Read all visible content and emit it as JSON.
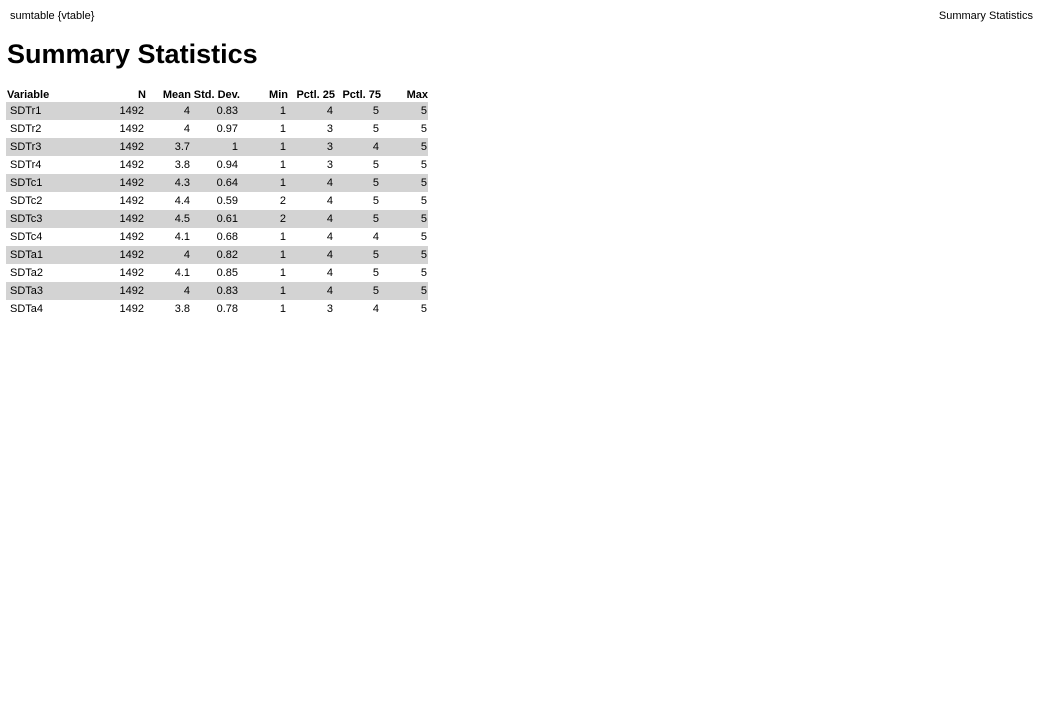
{
  "header": {
    "left": "sumtable {vtable}",
    "right": "Summary Statistics"
  },
  "title": "Summary Statistics",
  "table": {
    "columns": [
      "Variable",
      "N",
      "Mean",
      "Std. Dev.",
      "Min",
      "Pctl. 25",
      "Pctl. 75",
      "Max"
    ],
    "rows": [
      [
        "SDTr1",
        "1492",
        "4",
        "0.83",
        "1",
        "4",
        "5",
        "5"
      ],
      [
        "SDTr2",
        "1492",
        "4",
        "0.97",
        "1",
        "3",
        "5",
        "5"
      ],
      [
        "SDTr3",
        "1492",
        "3.7",
        "1",
        "1",
        "3",
        "4",
        "5"
      ],
      [
        "SDTr4",
        "1492",
        "3.8",
        "0.94",
        "1",
        "3",
        "5",
        "5"
      ],
      [
        "SDTc1",
        "1492",
        "4.3",
        "0.64",
        "1",
        "4",
        "5",
        "5"
      ],
      [
        "SDTc2",
        "1492",
        "4.4",
        "0.59",
        "2",
        "4",
        "5",
        "5"
      ],
      [
        "SDTc3",
        "1492",
        "4.5",
        "0.61",
        "2",
        "4",
        "5",
        "5"
      ],
      [
        "SDTc4",
        "1492",
        "4.1",
        "0.68",
        "1",
        "4",
        "4",
        "5"
      ],
      [
        "SDTa1",
        "1492",
        "4",
        "0.82",
        "1",
        "4",
        "5",
        "5"
      ],
      [
        "SDTa2",
        "1492",
        "4.1",
        "0.85",
        "1",
        "4",
        "5",
        "5"
      ],
      [
        "SDTa3",
        "1492",
        "4",
        "0.83",
        "1",
        "4",
        "5",
        "5"
      ],
      [
        "SDTa4",
        "1492",
        "3.8",
        "0.78",
        "1",
        "3",
        "4",
        "5"
      ]
    ]
  },
  "colors": {
    "shaded_row": "#d3d3d3",
    "background": "#ffffff"
  }
}
